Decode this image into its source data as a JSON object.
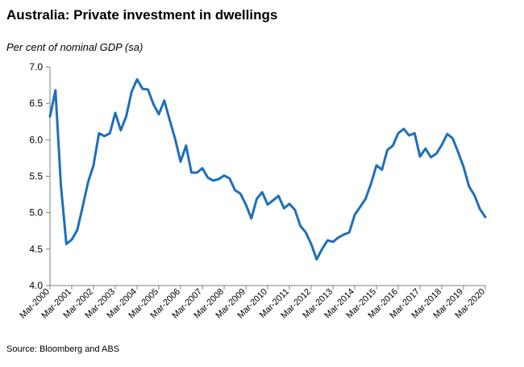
{
  "title": "Australia: Private investment in dwellings",
  "subtitle": "Per cent of nominal GDP (sa)",
  "source": "Source: Bloomberg and ABS",
  "chart_data": {
    "type": "line",
    "title": "Australia: Private investment in dwellings",
    "ylabel": "Per cent of nominal GDP (sa)",
    "xlabel": "",
    "ylim": [
      4.0,
      7.0
    ],
    "yticks": [
      "4.0",
      "4.5",
      "5.0",
      "5.5",
      "6.0",
      "6.5",
      "7.0"
    ],
    "xtick_labels": [
      "Mar-2000",
      "Mar-2001",
      "Mar-2002",
      "Mar-2003",
      "Mar-2004",
      "Mar-2005",
      "Mar-2006",
      "Mar-2007",
      "Mar-2008",
      "Mar-2009",
      "Mar-2010",
      "Mar-2011",
      "Mar-2012",
      "Mar-2013",
      "Mar-2014",
      "Mar-2015",
      "Mar-2016",
      "Mar-2017",
      "Mar-2018",
      "Mar-2019",
      "Mar-2020"
    ],
    "grid": false,
    "legend": "none",
    "color": "#1f6fb9",
    "series": [
      {
        "x": [
          "Mar-2000",
          "Jun-2000",
          "Sep-2000",
          "Dec-2000",
          "Mar-2001",
          "Jun-2001",
          "Sep-2001",
          "Dec-2001",
          "Mar-2002",
          "Jun-2002",
          "Sep-2002",
          "Dec-2002",
          "Mar-2003",
          "Jun-2003",
          "Sep-2003",
          "Dec-2003",
          "Mar-2004",
          "Jun-2004",
          "Sep-2004",
          "Dec-2004",
          "Mar-2005",
          "Jun-2005",
          "Sep-2005",
          "Dec-2005",
          "Mar-2006",
          "Jun-2006",
          "Sep-2006",
          "Dec-2006",
          "Mar-2007",
          "Jun-2007",
          "Sep-2007",
          "Dec-2007",
          "Mar-2008",
          "Jun-2008",
          "Sep-2008",
          "Dec-2008",
          "Mar-2009",
          "Jun-2009",
          "Sep-2009",
          "Dec-2009",
          "Mar-2010",
          "Jun-2010",
          "Sep-2010",
          "Dec-2010",
          "Mar-2011",
          "Jun-2011",
          "Sep-2011",
          "Dec-2011",
          "Mar-2012",
          "Jun-2012",
          "Sep-2012",
          "Dec-2012",
          "Mar-2013",
          "Jun-2013",
          "Sep-2013",
          "Dec-2013",
          "Mar-2014",
          "Jun-2014",
          "Sep-2014",
          "Dec-2014",
          "Mar-2015",
          "Jun-2015",
          "Sep-2015",
          "Dec-2015",
          "Mar-2016",
          "Jun-2016",
          "Sep-2016",
          "Dec-2016",
          "Mar-2017",
          "Jun-2017",
          "Sep-2017",
          "Dec-2017",
          "Mar-2018",
          "Jun-2018",
          "Sep-2018",
          "Dec-2018",
          "Mar-2019",
          "Jun-2019",
          "Sep-2019",
          "Dec-2019",
          "Mar-2020"
        ],
        "values": [
          6.32,
          6.68,
          5.38,
          4.57,
          4.63,
          4.76,
          5.08,
          5.42,
          5.65,
          6.09,
          6.05,
          6.09,
          6.37,
          6.13,
          6.32,
          6.66,
          6.83,
          6.7,
          6.69,
          6.49,
          6.35,
          6.54,
          6.27,
          6.01,
          5.7,
          5.92,
          5.55,
          5.55,
          5.61,
          5.48,
          5.44,
          5.46,
          5.51,
          5.47,
          5.31,
          5.26,
          5.11,
          4.92,
          5.19,
          5.28,
          5.11,
          5.17,
          5.23,
          5.06,
          5.12,
          5.04,
          4.82,
          4.73,
          4.57,
          4.36,
          4.5,
          4.62,
          4.6,
          4.66,
          4.7,
          4.73,
          4.97,
          5.08,
          5.19,
          5.4,
          5.65,
          5.59,
          5.86,
          5.92,
          6.09,
          6.15,
          6.06,
          6.09,
          5.77,
          5.88,
          5.76,
          5.81,
          5.93,
          6.08,
          6.02,
          5.83,
          5.63,
          5.36,
          5.24,
          5.05,
          4.94
        ]
      }
    ]
  }
}
